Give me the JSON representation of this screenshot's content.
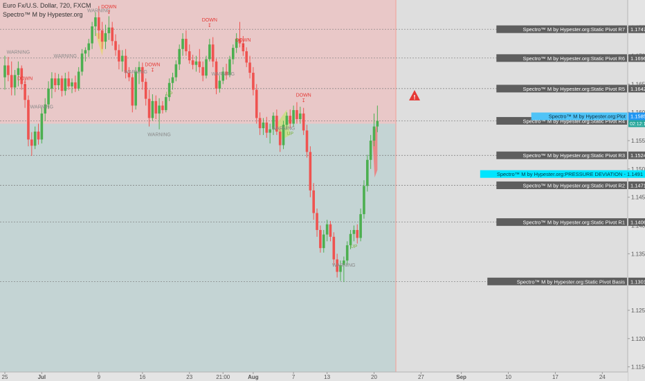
{
  "header": {
    "symbol_line": "Euro Fx/U.S. Dollar, 720, FXCM",
    "indicator_line": "Spectro™ M by Hypester.org"
  },
  "colors": {
    "up": "#4caf50",
    "down": "#ef5350",
    "bg_red": "#e9c8c8",
    "bg_teal": "#c4d4d4",
    "bg_future": "#dedede",
    "label_box": "#5e5e5e",
    "cyan": "#00e5ff",
    "blue_label": "#4fc3f7",
    "warning": "#e53935"
  },
  "chart_data": {
    "type": "candlestick",
    "instrument": "Euro Fx/U.S. Dollar",
    "interval": "720",
    "source": "FXCM",
    "ylim": [
      1.1125,
      1.1795
    ],
    "y_ticks": [
      "1.1150",
      "1.1200",
      "1.1250",
      "1.1350",
      "1.1400",
      "1.1450",
      "1.1500",
      "1.1550",
      "1.1600",
      "1.1650",
      "1.1700",
      "1.1750"
    ],
    "x_ticks": [
      {
        "label": "25",
        "i": 0
      },
      {
        "label": "Jul",
        "i": 11
      },
      {
        "label": "9",
        "i": 28
      },
      {
        "label": "16",
        "i": 41
      },
      {
        "label": "23",
        "i": 55
      },
      {
        "label": "21:00",
        "i": 65
      },
      {
        "label": "Aug",
        "i": 74
      },
      {
        "label": "7",
        "i": 86
      },
      {
        "label": "13",
        "i": 96
      },
      {
        "label": "20",
        "i": 110
      },
      {
        "label": "27",
        "i": 124
      },
      {
        "label": "Sep",
        "i": 136
      },
      {
        "label": "10",
        "i": 150
      },
      {
        "label": "17",
        "i": 164
      },
      {
        "label": "24",
        "i": 178
      }
    ],
    "levels": [
      {
        "name": "Spectro™ M by Hypester.org:Static Pivot R7",
        "value": 1.1747,
        "label": "1.1747"
      },
      {
        "name": "Spectro™ M by Hypester.org:Static Pivot R6",
        "value": 1.1696,
        "label": "1.1696"
      },
      {
        "name": "Spectro™ M by Hypester.org:Static Pivot R5",
        "value": 1.1642,
        "label": "1.1642"
      },
      {
        "name": "Spectro™ M by Hypester.org:Static Pivot R4",
        "value": 1.1585,
        "label": ""
      },
      {
        "name": "Spectro™ M by Hypester.org:Static Pivot R3",
        "value": 1.1524,
        "label": "1.1524"
      },
      {
        "name": "Spectro™ M by Hypester.org:Static Pivot R2",
        "value": 1.1471,
        "label": "1.1471"
      },
      {
        "name": "Spectro™ M by Hypester.org:Static Pivot R1",
        "value": 1.1406,
        "label": "1.1406"
      },
      {
        "name": "Spectro™ M by Hypester.org:Static Pivot Basis",
        "value": 1.1301,
        "label": "1.1301"
      }
    ],
    "pressure_deviation": {
      "name": "Spectro™ M by Hypester.org:PRESSURE DEVIATION",
      "value": 1.1491,
      "label": "1.1491"
    },
    "plot_label": {
      "name": "Spectro™ M by Hypester.org:Plot",
      "value": 1.1585,
      "label": "1.1585",
      "countdown": "02:12:12"
    },
    "red_zone_from": 1.158,
    "signals": [
      {
        "text": "WARNING",
        "i": 4,
        "y": 1.1704,
        "kind": "warn"
      },
      {
        "text": "DOWN",
        "i": 6,
        "y": 1.1657,
        "kind": "down"
      },
      {
        "text": "WARNING",
        "i": 18,
        "y": 1.1697,
        "kind": "warn"
      },
      {
        "text": "WARNING",
        "i": 11,
        "y": 1.1607,
        "kind": "warn"
      },
      {
        "text": "WARNING",
        "i": 28,
        "y": 1.1777,
        "kind": "warn"
      },
      {
        "text": "DOWN",
        "i": 31,
        "y": 1.1784,
        "kind": "down"
      },
      {
        "text": "WARNING",
        "i": 39,
        "y": 1.1669,
        "kind": "warn"
      },
      {
        "text": "DOWN",
        "i": 44,
        "y": 1.1682,
        "kind": "down"
      },
      {
        "text": "UP",
        "i": 49,
        "y": 1.163,
        "kind": "up"
      },
      {
        "text": "WARNING",
        "i": 46,
        "y": 1.1558,
        "kind": "warn"
      },
      {
        "text": "DOWN",
        "i": 61,
        "y": 1.1761,
        "kind": "down"
      },
      {
        "text": "WARNING",
        "i": 65,
        "y": 1.1665,
        "kind": "warn"
      },
      {
        "text": "DOWN",
        "i": 71,
        "y": 1.1725,
        "kind": "down"
      },
      {
        "text": "WARNING",
        "i": 83,
        "y": 1.1569,
        "kind": "warn"
      },
      {
        "text": "UP",
        "i": 85,
        "y": 1.156,
        "kind": "up"
      },
      {
        "text": "DOWN",
        "i": 89,
        "y": 1.1628,
        "kind": "down"
      },
      {
        "text": "WARNING",
        "i": 101,
        "y": 1.1327,
        "kind": "warn"
      },
      {
        "text": "UP",
        "i": 104,
        "y": 1.136,
        "kind": "up"
      }
    ],
    "candles": [
      {
        "o": 1.1662,
        "h": 1.17,
        "l": 1.164,
        "c": 1.1683
      },
      {
        "o": 1.1683,
        "h": 1.1698,
        "l": 1.1655,
        "c": 1.1666
      },
      {
        "o": 1.1666,
        "h": 1.169,
        "l": 1.163,
        "c": 1.1644
      },
      {
        "o": 1.1644,
        "h": 1.1675,
        "l": 1.163,
        "c": 1.1666
      },
      {
        "o": 1.1666,
        "h": 1.169,
        "l": 1.1646,
        "c": 1.1678
      },
      {
        "o": 1.1678,
        "h": 1.1683,
        "l": 1.164,
        "c": 1.165
      },
      {
        "o": 1.165,
        "h": 1.1658,
        "l": 1.1608,
        "c": 1.1622
      },
      {
        "o": 1.1622,
        "h": 1.163,
        "l": 1.154,
        "c": 1.1552
      },
      {
        "o": 1.1552,
        "h": 1.1565,
        "l": 1.1523,
        "c": 1.1541
      },
      {
        "o": 1.1541,
        "h": 1.1575,
        "l": 1.1535,
        "c": 1.1566
      },
      {
        "o": 1.1566,
        "h": 1.158,
        "l": 1.1543,
        "c": 1.1552
      },
      {
        "o": 1.1552,
        "h": 1.161,
        "l": 1.1545,
        "c": 1.1598
      },
      {
        "o": 1.1598,
        "h": 1.1625,
        "l": 1.1585,
        "c": 1.1614
      },
      {
        "o": 1.1614,
        "h": 1.1655,
        "l": 1.1606,
        "c": 1.1642
      },
      {
        "o": 1.1642,
        "h": 1.1671,
        "l": 1.1625,
        "c": 1.166
      },
      {
        "o": 1.166,
        "h": 1.167,
        "l": 1.1636,
        "c": 1.1648
      },
      {
        "o": 1.1648,
        "h": 1.1668,
        "l": 1.164,
        "c": 1.166
      },
      {
        "o": 1.166,
        "h": 1.1665,
        "l": 1.1628,
        "c": 1.1638
      },
      {
        "o": 1.1638,
        "h": 1.167,
        "l": 1.163,
        "c": 1.166
      },
      {
        "o": 1.166,
        "h": 1.1672,
        "l": 1.164,
        "c": 1.1646
      },
      {
        "o": 1.1646,
        "h": 1.166,
        "l": 1.1634,
        "c": 1.1653
      },
      {
        "o": 1.1653,
        "h": 1.1665,
        "l": 1.1636,
        "c": 1.1642
      },
      {
        "o": 1.1642,
        "h": 1.168,
        "l": 1.1638,
        "c": 1.1672
      },
      {
        "o": 1.1672,
        "h": 1.1712,
        "l": 1.1665,
        "c": 1.1704
      },
      {
        "o": 1.1704,
        "h": 1.1715,
        "l": 1.169,
        "c": 1.171
      },
      {
        "o": 1.171,
        "h": 1.173,
        "l": 1.1698,
        "c": 1.1722
      },
      {
        "o": 1.1722,
        "h": 1.176,
        "l": 1.1712,
        "c": 1.1752
      },
      {
        "o": 1.1752,
        "h": 1.1777,
        "l": 1.1735,
        "c": 1.1768
      },
      {
        "o": 1.1768,
        "h": 1.1788,
        "l": 1.173,
        "c": 1.1745
      },
      {
        "o": 1.1745,
        "h": 1.176,
        "l": 1.1712,
        "c": 1.1725
      },
      {
        "o": 1.1725,
        "h": 1.1755,
        "l": 1.1712,
        "c": 1.174
      },
      {
        "o": 1.174,
        "h": 1.177,
        "l": 1.1728,
        "c": 1.175
      },
      {
        "o": 1.175,
        "h": 1.176,
        "l": 1.1718,
        "c": 1.1726
      },
      {
        "o": 1.1726,
        "h": 1.1738,
        "l": 1.17,
        "c": 1.171
      },
      {
        "o": 1.171,
        "h": 1.172,
        "l": 1.1676,
        "c": 1.169
      },
      {
        "o": 1.169,
        "h": 1.171,
        "l": 1.1672,
        "c": 1.17
      },
      {
        "o": 1.17,
        "h": 1.1712,
        "l": 1.166,
        "c": 1.167
      },
      {
        "o": 1.167,
        "h": 1.168,
        "l": 1.1655,
        "c": 1.1662
      },
      {
        "o": 1.1662,
        "h": 1.1668,
        "l": 1.16,
        "c": 1.1612
      },
      {
        "o": 1.1612,
        "h": 1.168,
        "l": 1.1605,
        "c": 1.1672
      },
      {
        "o": 1.1672,
        "h": 1.169,
        "l": 1.165,
        "c": 1.168
      },
      {
        "o": 1.168,
        "h": 1.1688,
        "l": 1.164,
        "c": 1.1654
      },
      {
        "o": 1.1654,
        "h": 1.166,
        "l": 1.1612,
        "c": 1.1624
      },
      {
        "o": 1.1624,
        "h": 1.164,
        "l": 1.1575,
        "c": 1.159
      },
      {
        "o": 1.159,
        "h": 1.1632,
        "l": 1.1585,
        "c": 1.162
      },
      {
        "o": 1.162,
        "h": 1.163,
        "l": 1.1588,
        "c": 1.1598
      },
      {
        "o": 1.1598,
        "h": 1.1625,
        "l": 1.157,
        "c": 1.1612
      },
      {
        "o": 1.1612,
        "h": 1.162,
        "l": 1.1598,
        "c": 1.1604
      },
      {
        "o": 1.1604,
        "h": 1.1632,
        "l": 1.16,
        "c": 1.1627
      },
      {
        "o": 1.1627,
        "h": 1.166,
        "l": 1.162,
        "c": 1.1652
      },
      {
        "o": 1.1652,
        "h": 1.167,
        "l": 1.164,
        "c": 1.1662
      },
      {
        "o": 1.1662,
        "h": 1.1692,
        "l": 1.1655,
        "c": 1.1685
      },
      {
        "o": 1.1685,
        "h": 1.172,
        "l": 1.1675,
        "c": 1.1712
      },
      {
        "o": 1.1712,
        "h": 1.174,
        "l": 1.17,
        "c": 1.173
      },
      {
        "o": 1.173,
        "h": 1.1745,
        "l": 1.17,
        "c": 1.1708
      },
      {
        "o": 1.1708,
        "h": 1.172,
        "l": 1.1686,
        "c": 1.1692
      },
      {
        "o": 1.1692,
        "h": 1.1702,
        "l": 1.1676,
        "c": 1.1684
      },
      {
        "o": 1.1684,
        "h": 1.17,
        "l": 1.1672,
        "c": 1.169
      },
      {
        "o": 1.169,
        "h": 1.1712,
        "l": 1.167,
        "c": 1.168
      },
      {
        "o": 1.168,
        "h": 1.169,
        "l": 1.1655,
        "c": 1.1665
      },
      {
        "o": 1.1665,
        "h": 1.17,
        "l": 1.166,
        "c": 1.1694
      },
      {
        "o": 1.1694,
        "h": 1.173,
        "l": 1.169,
        "c": 1.172
      },
      {
        "o": 1.172,
        "h": 1.1733,
        "l": 1.168,
        "c": 1.169
      },
      {
        "o": 1.169,
        "h": 1.1695,
        "l": 1.1632,
        "c": 1.1642
      },
      {
        "o": 1.1642,
        "h": 1.1665,
        "l": 1.1635,
        "c": 1.1656
      },
      {
        "o": 1.1656,
        "h": 1.168,
        "l": 1.165,
        "c": 1.1672
      },
      {
        "o": 1.1672,
        "h": 1.1686,
        "l": 1.1658,
        "c": 1.1666
      },
      {
        "o": 1.1666,
        "h": 1.17,
        "l": 1.1662,
        "c": 1.1694
      },
      {
        "o": 1.1694,
        "h": 1.172,
        "l": 1.1685,
        "c": 1.1714
      },
      {
        "o": 1.1714,
        "h": 1.174,
        "l": 1.1705,
        "c": 1.173
      },
      {
        "o": 1.173,
        "h": 1.176,
        "l": 1.1715,
        "c": 1.1722
      },
      {
        "o": 1.1722,
        "h": 1.1735,
        "l": 1.17,
        "c": 1.1708
      },
      {
        "o": 1.1708,
        "h": 1.1715,
        "l": 1.168,
        "c": 1.1688
      },
      {
        "o": 1.1688,
        "h": 1.17,
        "l": 1.166,
        "c": 1.167
      },
      {
        "o": 1.167,
        "h": 1.168,
        "l": 1.163,
        "c": 1.164
      },
      {
        "o": 1.164,
        "h": 1.165,
        "l": 1.158,
        "c": 1.159
      },
      {
        "o": 1.159,
        "h": 1.16,
        "l": 1.156,
        "c": 1.1572
      },
      {
        "o": 1.1572,
        "h": 1.159,
        "l": 1.156,
        "c": 1.1582
      },
      {
        "o": 1.1582,
        "h": 1.1592,
        "l": 1.1555,
        "c": 1.1564
      },
      {
        "o": 1.1564,
        "h": 1.158,
        "l": 1.1545,
        "c": 1.157
      },
      {
        "o": 1.157,
        "h": 1.16,
        "l": 1.156,
        "c": 1.1594
      },
      {
        "o": 1.1594,
        "h": 1.1605,
        "l": 1.156,
        "c": 1.1566
      },
      {
        "o": 1.1566,
        "h": 1.1575,
        "l": 1.153,
        "c": 1.1542
      },
      {
        "o": 1.1542,
        "h": 1.1585,
        "l": 1.1535,
        "c": 1.1578
      },
      {
        "o": 1.1578,
        "h": 1.16,
        "l": 1.157,
        "c": 1.1594
      },
      {
        "o": 1.1594,
        "h": 1.1605,
        "l": 1.1572,
        "c": 1.158
      },
      {
        "o": 1.158,
        "h": 1.1612,
        "l": 1.1574,
        "c": 1.1604
      },
      {
        "o": 1.1604,
        "h": 1.1618,
        "l": 1.158,
        "c": 1.1588
      },
      {
        "o": 1.1588,
        "h": 1.161,
        "l": 1.158,
        "c": 1.1598
      },
      {
        "o": 1.1598,
        "h": 1.1608,
        "l": 1.156,
        "c": 1.1568
      },
      {
        "o": 1.1568,
        "h": 1.1578,
        "l": 1.152,
        "c": 1.153
      },
      {
        "o": 1.153,
        "h": 1.154,
        "l": 1.145,
        "c": 1.1462
      },
      {
        "o": 1.1462,
        "h": 1.1475,
        "l": 1.141,
        "c": 1.1422
      },
      {
        "o": 1.1422,
        "h": 1.143,
        "l": 1.138,
        "c": 1.1392
      },
      {
        "o": 1.1392,
        "h": 1.14,
        "l": 1.1352,
        "c": 1.136
      },
      {
        "o": 1.136,
        "h": 1.1392,
        "l": 1.1352,
        "c": 1.1384
      },
      {
        "o": 1.1384,
        "h": 1.141,
        "l": 1.1372,
        "c": 1.1402
      },
      {
        "o": 1.1402,
        "h": 1.1408,
        "l": 1.1372,
        "c": 1.138
      },
      {
        "o": 1.138,
        "h": 1.1388,
        "l": 1.133,
        "c": 1.134
      },
      {
        "o": 1.134,
        "h": 1.135,
        "l": 1.1308,
        "c": 1.1318
      },
      {
        "o": 1.1318,
        "h": 1.1338,
        "l": 1.1302,
        "c": 1.133
      },
      {
        "o": 1.133,
        "h": 1.1345,
        "l": 1.13,
        "c": 1.1338
      },
      {
        "o": 1.1338,
        "h": 1.1372,
        "l": 1.133,
        "c": 1.1365
      },
      {
        "o": 1.1365,
        "h": 1.1392,
        "l": 1.1358,
        "c": 1.1385
      },
      {
        "o": 1.1385,
        "h": 1.14,
        "l": 1.1372,
        "c": 1.1392
      },
      {
        "o": 1.1392,
        "h": 1.1402,
        "l": 1.1368,
        "c": 1.1378
      },
      {
        "o": 1.1378,
        "h": 1.143,
        "l": 1.1372,
        "c": 1.142
      },
      {
        "o": 1.142,
        "h": 1.148,
        "l": 1.1412,
        "c": 1.147
      },
      {
        "o": 1.147,
        "h": 1.1525,
        "l": 1.146,
        "c": 1.1516
      },
      {
        "o": 1.1516,
        "h": 1.156,
        "l": 1.15,
        "c": 1.155
      },
      {
        "o": 1.155,
        "h": 1.1598,
        "l": 1.154,
        "c": 1.1575
      },
      {
        "o": 1.1575,
        "h": 1.1612,
        "l": 1.1565,
        "c": 1.1585
      }
    ]
  }
}
